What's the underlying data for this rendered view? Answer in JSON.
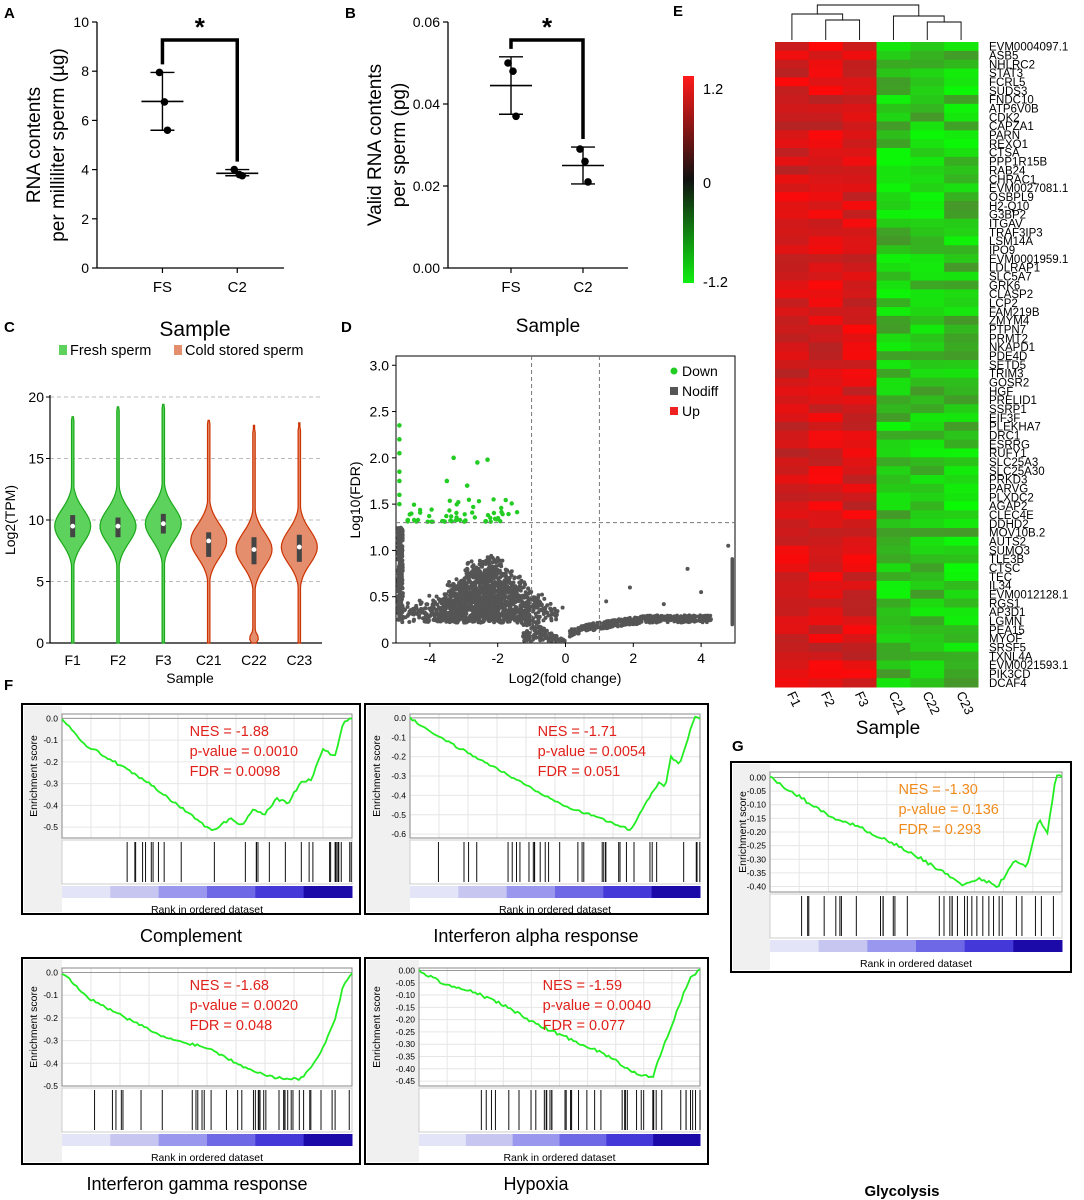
{
  "chart_data": [
    {
      "panel": "A",
      "type": "scatter",
      "ylabel": "RNA contents per milliliter sperm (µg)",
      "ylabel_lines": [
        "RNA contents",
        "per milliliter sperm (µg)"
      ],
      "ylim": [
        0,
        10
      ],
      "yticks": [
        "0",
        "2",
        "4",
        "6",
        "8",
        "10"
      ],
      "categories": [
        "FS",
        "C2"
      ],
      "points": [
        [
          7.95,
          6.75,
          5.6
        ],
        [
          4.0,
          3.8,
          3.75
        ]
      ],
      "means": [
        6.77,
        3.85
      ],
      "sd_low": [
        5.6,
        3.75
      ],
      "sd_high": [
        7.95,
        4.0
      ],
      "significance": "*"
    },
    {
      "panel": "B",
      "type": "scatter",
      "ylabel": "Valid RNA contents per sperm (pg)",
      "ylabel_lines": [
        "Valid RNA contents",
        "per sperm (pg)"
      ],
      "ylim": [
        0,
        0.06
      ],
      "yticks": [
        "0.00",
        "0.02",
        "0.04",
        "0.06"
      ],
      "categories": [
        "FS",
        "C2"
      ],
      "xlabel": "Sample",
      "points": [
        [
          0.05,
          0.048,
          0.037
        ],
        [
          0.029,
          0.026,
          0.021
        ]
      ],
      "means": [
        0.0445,
        0.025
      ],
      "sd_low": [
        0.0375,
        0.0205
      ],
      "sd_high": [
        0.0515,
        0.0295
      ],
      "significance": "*"
    },
    {
      "panel": "C",
      "type": "violin",
      "title": "Sample",
      "xlabel": "Sample",
      "ylabel": "Log2(TPM)",
      "ylim": [
        0,
        20
      ],
      "yticks": [
        "0",
        "5",
        "10",
        "15",
        "20"
      ],
      "legend": [
        "Fresh sperm",
        "Cold stored sperm"
      ],
      "colors": {
        "fresh": "#5dd35d",
        "cold": "#e58e6e",
        "fresh_edge": "#1aa81a",
        "cold_edge": "#cc3300"
      },
      "categories": [
        "F1",
        "F2",
        "F3",
        "C21",
        "C22",
        "C23"
      ],
      "groups": [
        "fresh",
        "fresh",
        "fresh",
        "cold",
        "cold",
        "cold"
      ],
      "medians": [
        9.5,
        9.5,
        9.7,
        8.3,
        7.6,
        7.8
      ],
      "q1": [
        8.6,
        8.6,
        8.9,
        7.0,
        6.4,
        6.6
      ],
      "q3": [
        10.4,
        10.2,
        10.5,
        9.0,
        8.6,
        8.8
      ],
      "max": [
        18.4,
        19.2,
        19.4,
        18.1,
        17.7,
        17.9
      ]
    },
    {
      "panel": "D",
      "type": "scatter",
      "xlabel": "Log2(fold change)",
      "ylabel": "Log10(FDR)",
      "xlim": [
        -5,
        5
      ],
      "ylim": [
        0,
        3.1
      ],
      "xticks": [
        "-4",
        "-2",
        "0",
        "2",
        "4"
      ],
      "yticks": [
        "0",
        "0.5",
        "1.0",
        "1.5",
        "2.0",
        "2.5",
        "3.0"
      ],
      "legend": [
        "Down",
        "Nodiff",
        "Up"
      ],
      "colors": {
        "down": "#22cc22",
        "nodiff": "#555555",
        "up": "#ee2222"
      },
      "thresholds": {
        "fdr": 1.3,
        "fc": [
          -1,
          1
        ]
      }
    },
    {
      "panel": "E",
      "type": "heatmap",
      "xlabel": "Sample",
      "columns": [
        "F1",
        "F2",
        "F3",
        "C21",
        "C22",
        "C23"
      ],
      "scale_labels": [
        "1.2",
        "0",
        "-1.2"
      ],
      "rows": [
        "EVM0004097.1",
        "ASB5",
        "NHLRC2",
        "STAT3",
        "FCRL5",
        "SUDS3",
        "FNDC10",
        "ATP6V0B",
        "CDK2",
        "CAPZA1",
        "PARN",
        "REXO1",
        "CTSA",
        "PPP1R15B",
        "RAB24",
        "CHRAC1",
        "EVM0027081.1",
        "OSBPL9",
        "H2-Q10",
        "G3BP2",
        "ITGAV",
        "TRAF3IP3",
        "LSM14A",
        "IPO9",
        "EVM0001959.1",
        "LDLRAP1",
        "SLC5A7",
        "GRK6",
        "CLASP2",
        "LCP2",
        "FAM219B",
        "ZMYM4",
        "PTPN7",
        "PRMT2",
        "NKAPD1",
        "PDE4D",
        "SETD5",
        "TRIM3",
        "GOSR2",
        "HGF",
        "PRELID1",
        "SSRP1",
        "EIF3F",
        "PLEKHA7",
        "DRC1",
        "ESRRG",
        "RUFY1",
        "SLC25A3",
        "SLC25A30",
        "PRKD3",
        "PARVG",
        "PLXDC2",
        "AGAP2",
        "CLEC4E",
        "DDHD2",
        "MOV10B.2",
        "AUTS2",
        "SUMO3",
        "TLE3B",
        "CTSC",
        "TEC",
        "IL34",
        "EVM0012128.1",
        "RGS1",
        "AP3D1",
        "LGMN",
        "PEA15",
        "MYOF",
        "SRSF5",
        "TXNL4A",
        "EVM0021593.1",
        "PIK3CD",
        "DCAF4"
      ]
    },
    {
      "panel": "F",
      "type": "line",
      "ylabel": "Enrichment score",
      "xlabel": "Rank in ordered dataset",
      "plots": [
        {
          "title": "Complement",
          "nes": "NES = -1.88",
          "pval": "p-value = 0.0010",
          "fdr": "FDR = 0.0098",
          "yticks": [
            "0.0",
            "-0.1",
            "-0.2",
            "-0.3",
            "-0.4",
            "-0.5"
          ],
          "ylim": [
            -0.55,
            0.02
          ],
          "x": [
            0,
            0.08,
            0.18,
            0.3,
            0.42,
            0.52,
            0.58,
            0.62,
            0.66,
            0.7,
            0.74,
            0.78,
            0.82,
            0.86,
            0.9,
            0.94,
            0.97,
            1.0
          ],
          "y": [
            0,
            -0.12,
            -0.2,
            -0.3,
            -0.42,
            -0.52,
            -0.46,
            -0.49,
            -0.42,
            -0.44,
            -0.37,
            -0.39,
            -0.3,
            -0.28,
            -0.14,
            -0.18,
            -0.02,
            0
          ]
        },
        {
          "title": "Interferon alpha response",
          "nes": "NES = -1.71",
          "pval": "p-value = 0.0054",
          "fdr": "FDR = 0.051",
          "yticks": [
            "0.0",
            "-0.1",
            "-0.2",
            "-0.3",
            "-0.4",
            "-0.5",
            "-0.6"
          ],
          "ylim": [
            -0.62,
            0.02
          ],
          "x": [
            0,
            0.1,
            0.2,
            0.32,
            0.44,
            0.56,
            0.66,
            0.76,
            0.82,
            0.86,
            0.88,
            0.9,
            0.93,
            0.96,
            0.98,
            1.0
          ],
          "y": [
            0,
            -0.1,
            -0.18,
            -0.28,
            -0.38,
            -0.47,
            -0.52,
            -0.58,
            -0.42,
            -0.33,
            -0.36,
            -0.2,
            -0.24,
            -0.1,
            0.0,
            0
          ]
        },
        {
          "title": "Interferon gamma response",
          "nes": "NES = -1.68",
          "pval": "p-value = 0.0020",
          "fdr": "FDR = 0.048",
          "yticks": [
            "0.0",
            "-0.1",
            "-0.2",
            "-0.3",
            "-0.4",
            "-0.5"
          ],
          "ylim": [
            -0.5,
            0.02
          ],
          "x": [
            0,
            0.1,
            0.22,
            0.36,
            0.5,
            0.62,
            0.72,
            0.82,
            0.86,
            0.9,
            0.94,
            0.97,
            1.0
          ],
          "y": [
            0,
            -0.12,
            -0.2,
            -0.29,
            -0.33,
            -0.41,
            -0.46,
            -0.47,
            -0.42,
            -0.33,
            -0.21,
            -0.06,
            0
          ]
        },
        {
          "title": "Hypoxia",
          "nes": "NES = -1.59",
          "pval": "p-value = 0.0040",
          "fdr": "FDR = 0.077",
          "yticks": [
            "0.00",
            "-0.05",
            "-0.10",
            "-0.15",
            "-0.20",
            "-0.25",
            "-0.30",
            "-0.35",
            "-0.40",
            "-0.45"
          ],
          "ylim": [
            -0.47,
            0.01
          ],
          "x": [
            0,
            0.1,
            0.2,
            0.3,
            0.42,
            0.54,
            0.66,
            0.76,
            0.83,
            0.86,
            0.9,
            0.94,
            0.97,
            1.0
          ],
          "y": [
            0,
            -0.06,
            -0.09,
            -0.14,
            -0.22,
            -0.28,
            -0.34,
            -0.41,
            -0.44,
            -0.34,
            -0.22,
            -0.1,
            -0.02,
            0
          ]
        }
      ]
    },
    {
      "panel": "G",
      "type": "line",
      "ylabel": "Enrichment score",
      "xlabel": "Rank in ordered dataset",
      "plots": [
        {
          "title": "Glycolysis",
          "nes": "NES = -1.30",
          "pval": "p-value = 0.136",
          "fdr": "FDR = 0.293",
          "yticks": [
            "0.00",
            "-0.05",
            "-0.10",
            "-0.15",
            "-0.20",
            "-0.25",
            "-0.30",
            "-0.35",
            "-0.40"
          ],
          "ylim": [
            -0.42,
            0.02
          ],
          "x": [
            0,
            0.1,
            0.2,
            0.3,
            0.42,
            0.52,
            0.6,
            0.66,
            0.72,
            0.78,
            0.84,
            0.88,
            0.92,
            0.95,
            0.98,
            1.0
          ],
          "y": [
            0,
            -0.07,
            -0.14,
            -0.18,
            -0.24,
            -0.3,
            -0.35,
            -0.4,
            -0.37,
            -0.4,
            -0.3,
            -0.33,
            -0.15,
            -0.2,
            0.01,
            0
          ]
        }
      ]
    }
  ]
}
